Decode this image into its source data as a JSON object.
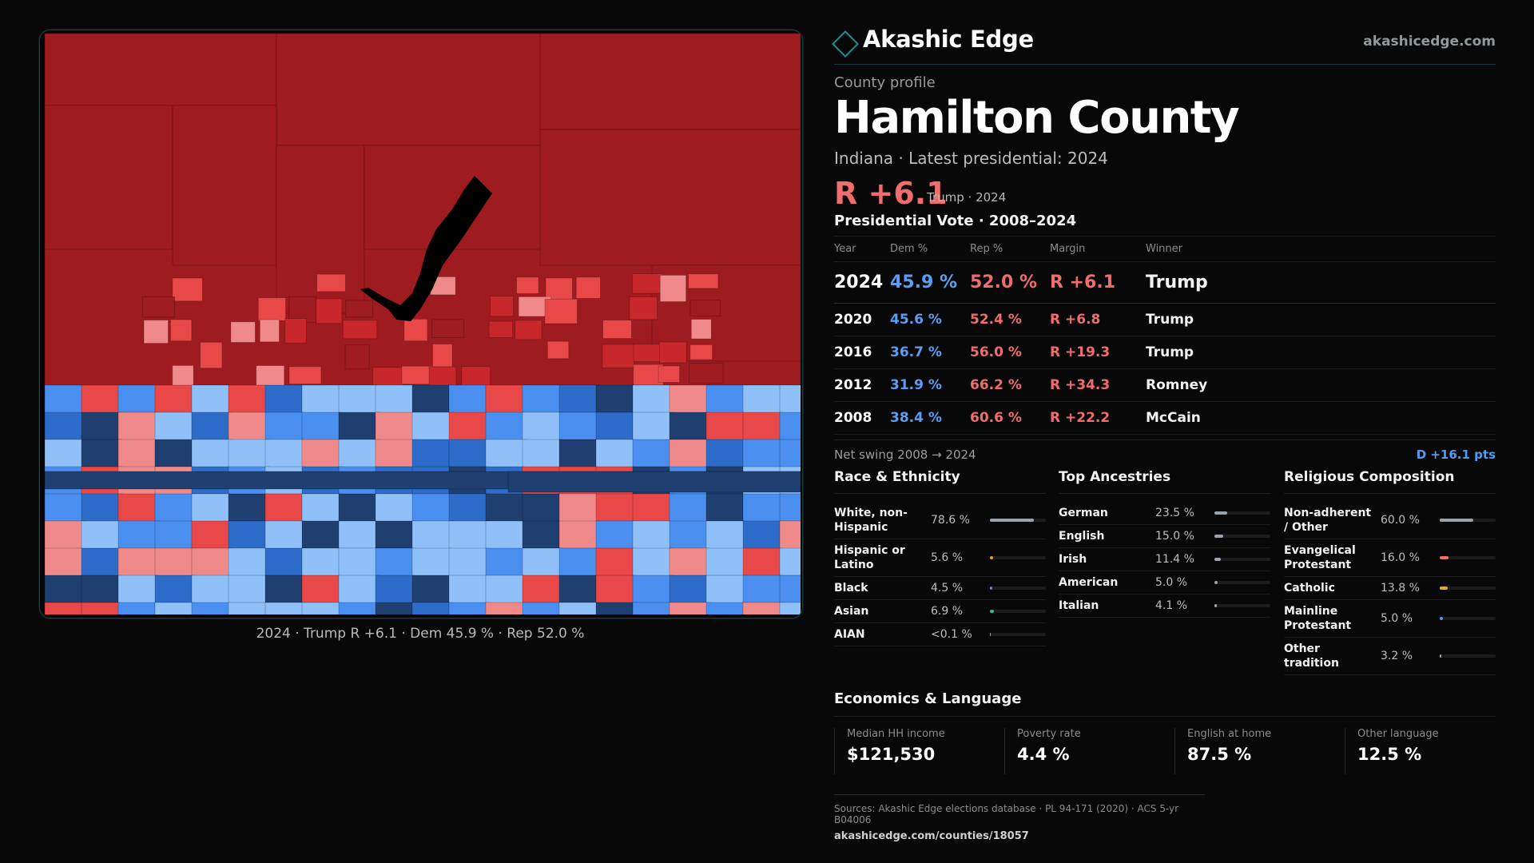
{
  "brand": {
    "name": "Akashic Edge",
    "url": "akashicedge.com"
  },
  "profile": {
    "kicker": "County profile",
    "title": "Hamilton County",
    "subtitle": "Indiana · Latest presidential: 2024",
    "margin_big": "R +6.1",
    "margin_small": "Trump · 2024"
  },
  "map": {
    "caption": "2024 · Trump R +6.1 · Dem 45.9 % · Rep 52.0 %",
    "colors": {
      "strong_rep": "#9e1b20",
      "rep": "#c8282c",
      "lean_rep": "#e84848",
      "tilt_rep": "#f08a8a",
      "tilt_dem": "#8fc0f8",
      "lean_dem": "#4a8ef0",
      "dem": "#2d6cc8",
      "strong_dem": "#1e3f70",
      "water": "#000000"
    }
  },
  "vote": {
    "title": "Presidential Vote · 2008–2024",
    "headers": {
      "year": "Year",
      "dem": "Dem %",
      "rep": "Rep %",
      "margin": "Margin",
      "winner": "Winner"
    },
    "rows": [
      {
        "year": "2024",
        "dem": "45.9 %",
        "rep": "52.0 %",
        "margin": "R +6.1",
        "winner": "Trump"
      },
      {
        "year": "2020",
        "dem": "45.6 %",
        "rep": "52.4 %",
        "margin": "R +6.8",
        "winner": "Trump"
      },
      {
        "year": "2016",
        "dem": "36.7 %",
        "rep": "56.0 %",
        "margin": "R +19.3",
        "winner": "Trump"
      },
      {
        "year": "2012",
        "dem": "31.9 %",
        "rep": "66.2 %",
        "margin": "R +34.3",
        "winner": "Romney"
      },
      {
        "year": "2008",
        "dem": "38.4 %",
        "rep": "60.6 %",
        "margin": "R +22.2",
        "winner": "McCain"
      }
    ],
    "swing_label": "Net swing 2008 → 2024",
    "swing_value": "D +16.1 pts"
  },
  "race": {
    "title": "Race & Ethnicity",
    "items": [
      {
        "label": "White, non-Hispanic",
        "value": "78.6 %",
        "pct": 78.6,
        "color": "#9aa3ad"
      },
      {
        "label": "Hispanic or Latino",
        "value": "5.6 %",
        "pct": 5.6,
        "color": "#e0a21c"
      },
      {
        "label": "Black",
        "value": "4.5 %",
        "pct": 4.5,
        "color": "#8b6fd8"
      },
      {
        "label": "Asian",
        "value": "6.9 %",
        "pct": 6.9,
        "color": "#2fbf8e"
      },
      {
        "label": "AIAN",
        "value": "<0.1 %",
        "pct": 0.05,
        "color": "#9aa3ad"
      }
    ]
  },
  "ancestry": {
    "title": "Top Ancestries",
    "items": [
      {
        "label": "German",
        "value": "23.5 %",
        "pct": 23.5,
        "color": "#9aa3ad"
      },
      {
        "label": "English",
        "value": "15.0 %",
        "pct": 15.0,
        "color": "#9aa3ad"
      },
      {
        "label": "Irish",
        "value": "11.4 %",
        "pct": 11.4,
        "color": "#9aa3ad"
      },
      {
        "label": "American",
        "value": "5.0 %",
        "pct": 5.0,
        "color": "#9aa3ad"
      },
      {
        "label": "Italian",
        "value": "4.1 %",
        "pct": 4.1,
        "color": "#9aa3ad"
      }
    ]
  },
  "religion": {
    "title": "Religious Composition",
    "items": [
      {
        "label": "Non-adherent / Other",
        "value": "60.0 %",
        "pct": 60.0,
        "color": "#9aa3ad"
      },
      {
        "label": "Evangelical Protestant",
        "value": "16.0 %",
        "pct": 16.0,
        "color": "#f06d6d"
      },
      {
        "label": "Catholic",
        "value": "13.8 %",
        "pct": 13.8,
        "color": "#e0b021"
      },
      {
        "label": "Mainline Protestant",
        "value": "5.0 %",
        "pct": 5.0,
        "color": "#4f9cf5"
      },
      {
        "label": "Other tradition",
        "value": "3.2 %",
        "pct": 3.2,
        "color": "#9aa3ad"
      }
    ]
  },
  "economics": {
    "title": "Economics & Language",
    "items": [
      {
        "label": "Median HH income",
        "value": "$121,530"
      },
      {
        "label": "Poverty rate",
        "value": "4.4 %"
      },
      {
        "label": "English at home",
        "value": "87.5 %"
      },
      {
        "label": "Other language",
        "value": "12.5 %"
      }
    ]
  },
  "footer": {
    "sources": "Sources: Akashic Edge elections database · PL 94-171 (2020) · ACS 5-yr B04006",
    "link": "akashicedge.com/counties/18057"
  }
}
